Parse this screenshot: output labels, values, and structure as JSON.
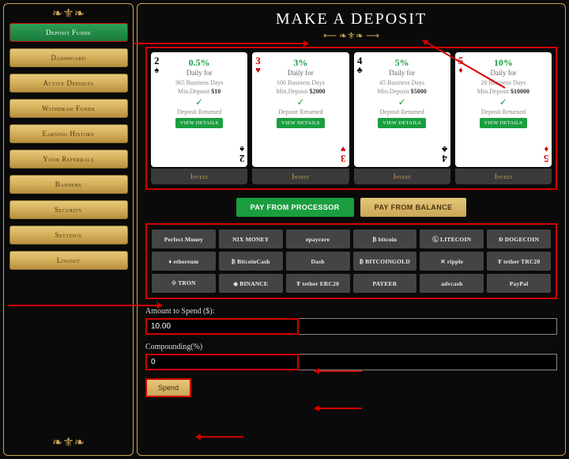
{
  "sidebar": {
    "items": [
      {
        "label": "Deposit Funds",
        "active": true
      },
      {
        "label": "Dashboard",
        "active": false
      },
      {
        "label": "Active Deposits",
        "active": false
      },
      {
        "label": "Withdraw Funds",
        "active": false
      },
      {
        "label": "Earning History",
        "active": false
      },
      {
        "label": "Your Referrals",
        "active": false
      },
      {
        "label": "Banners",
        "active": false
      },
      {
        "label": "Security",
        "active": false
      },
      {
        "label": "Settings",
        "active": false
      },
      {
        "label": "Logout",
        "active": false
      }
    ]
  },
  "page": {
    "title": "MAKE A DEPOSIT"
  },
  "plans": [
    {
      "rank": "2",
      "suit": "♠",
      "suit_color": "black",
      "rate": "0.5%",
      "daily": "Daily for",
      "days": "365 Business Days",
      "min_label": "Min.Deposit",
      "min": "$10"
    },
    {
      "rank": "3",
      "suit": "♥",
      "suit_color": "red",
      "rate": "3%",
      "daily": "Daily for",
      "days": "100 Business Days",
      "min_label": "Min.Deposit",
      "min": "$2000"
    },
    {
      "rank": "4",
      "suit": "♣",
      "suit_color": "black",
      "rate": "5%",
      "daily": "Daily for",
      "days": "45 Business Days",
      "min_label": "Min.Deposit",
      "min": "$5000"
    },
    {
      "rank": "5",
      "suit": "♦",
      "suit_color": "red",
      "rate": "10%",
      "daily": "Daily for",
      "days": "20 Business Days",
      "min_label": "Min.Deposit",
      "min": "$10000"
    }
  ],
  "plan_common": {
    "returned": "Deposit Returned",
    "view": "VIEW DETAILS",
    "invest": "Invest"
  },
  "pay": {
    "processor": "PAY FROM PROCESSOR",
    "balance": "PAY FROM BALANCE"
  },
  "processors": [
    "Perfect Money",
    "NIX MONEY",
    "epaycore",
    "₿ bitcoin",
    "Ⓛ LITECOIN",
    "Ð DOGECOIN",
    "♦ ethereum",
    "₿ BitcoinCash",
    "Dash",
    "₿ BITCOINGOLD",
    "✕ ripple",
    "₮ tether TRC20",
    "⟐ TRON",
    "◈ BINANCE",
    "₮ tether ERC20",
    "PAYEER",
    "advcash",
    "PayPal"
  ],
  "form": {
    "amount_label": "Amount to Spend ($):",
    "amount_value": "10.00",
    "comp_label": "Compounding(%)",
    "comp_value": "0",
    "spend": "Spend"
  },
  "colors": {
    "gold": "#c9a657",
    "green": "#1a9e3f",
    "red_hl": "#d00000",
    "bg": "#0a0a0a"
  }
}
